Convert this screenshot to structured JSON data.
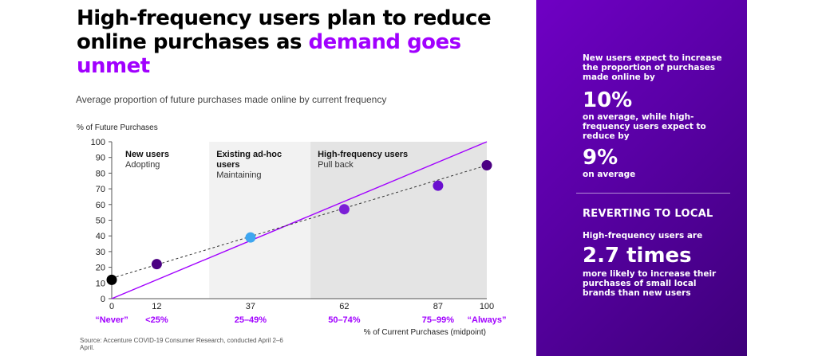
{
  "title": {
    "part1": "High-frequency users plan to reduce online purchases as ",
    "highlight": "demand goes unmet"
  },
  "subtitle": "Average proportion of future purchases made online by current frequency",
  "source": "Source: Accenture COVID-19 Consumer Research, conducted April 2–6 April.",
  "colors": {
    "accent": "#a100ff",
    "panel": "#5b00a8",
    "dot_dark": "#4b0082",
    "dot_mid": "#7b1fd6",
    "dot_blue": "#3ea6f0",
    "dot_black": "#000000",
    "band_mid": "#f2f2f2",
    "band_right": "#e4e4e4"
  },
  "chart_data": {
    "type": "scatter",
    "ylabel": "% of Future Purchases",
    "xlabel": "% of Current Purchases (midpoint)",
    "xlim": [
      0,
      100
    ],
    "ylim": [
      0,
      100
    ],
    "xticks": [
      0,
      12,
      37,
      62,
      87,
      100
    ],
    "yticks": [
      0,
      10,
      20,
      30,
      40,
      50,
      60,
      70,
      80,
      90,
      100
    ],
    "x_category_labels": [
      "“Never”",
      "<25%",
      "25–49%",
      "50–74%",
      "75–99%",
      "“Always”"
    ],
    "points": [
      {
        "x": 0,
        "y": 12,
        "color": "#000000"
      },
      {
        "x": 12,
        "y": 22,
        "color": "#4b0082"
      },
      {
        "x": 37,
        "y": 39,
        "color": "#3ea6f0"
      },
      {
        "x": 62,
        "y": 57,
        "color": "#7b1fd6"
      },
      {
        "x": 87,
        "y": 72,
        "color": "#6a0fcf"
      },
      {
        "x": 100,
        "y": 85,
        "color": "#4b0082"
      }
    ],
    "reference_line": {
      "from": [
        0,
        0
      ],
      "to": [
        100,
        100
      ],
      "color": "#a100ff"
    },
    "trend_line": {
      "from": [
        0,
        13
      ],
      "to": [
        100,
        85
      ],
      "style": "dashed"
    },
    "segments": [
      {
        "title": "New users",
        "subtitle": "Adopting",
        "x_from": 0,
        "x_to": 26,
        "shade": "none"
      },
      {
        "title": "Existing ad-hoc users",
        "subtitle": "Maintaining",
        "x_from": 26,
        "x_to": 53,
        "shade": "light"
      },
      {
        "title": "High-frequency users",
        "subtitle": "Pull back",
        "x_from": 53,
        "x_to": 100,
        "shade": "dark"
      }
    ]
  },
  "panel": {
    "intro": "New users expect to increase the proportion of purchases made online by",
    "stat1": "10%",
    "mid": "on average, while high-frequency users expect to reduce by",
    "stat2": "9%",
    "stat2_note": "on average",
    "heading": "REVERTING TO LOCAL",
    "lead": "High-frequency users are",
    "stat3": "2.7 times",
    "closing": "more likely to increase their purchases of small local brands than new users"
  }
}
